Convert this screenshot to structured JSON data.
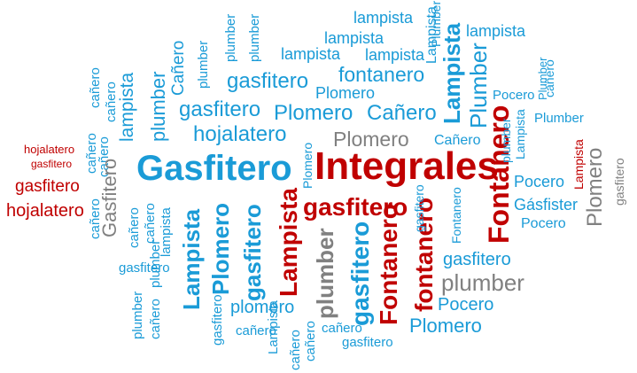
{
  "colors": {
    "blue": "#1a9bd7",
    "red": "#c00000",
    "gray": "#808080"
  },
  "words": [
    "hojalatero",
    "gasfitero",
    "gasfitero",
    "hojalatero",
    "Gasfitero",
    "Integrales",
    "lampista",
    "lampista",
    "lampista",
    "lampista",
    "lampista",
    "plumber",
    "plumber",
    "plumber",
    "plumber",
    "Cañero",
    "Cañero",
    "Cañero",
    "fontanero",
    "Plomero",
    "Plomero",
    "Plomero",
    "Plomero",
    "gasfitero",
    "gasfitero",
    "hojalatero",
    "Lampista",
    "Plumber",
    "Lampista",
    "Lampista",
    "Plumber",
    "Pocero",
    "Pocero",
    "Pocero",
    "Pocero",
    "Gásfister",
    "Plomero",
    "Plumber",
    "Lampista",
    "Plumber",
    "Lampista",
    "Fontanero",
    "Fontanero",
    "fontanero",
    "Fontanero",
    "gasfitero",
    "gasfitero",
    "gasfitero",
    "gasfitero",
    "gasfitero",
    "lampista",
    "Lampista",
    "Plomero",
    "gasfitero",
    "plumber",
    "plumber",
    "plomero",
    "Plomero",
    "cañero",
    "cañero",
    "cañero",
    "cañero",
    "cañero",
    "cañero",
    "cañero",
    "cañero",
    "Gasfitero",
    "lampista",
    "plumber",
    "gasfitero",
    "gasfitero",
    "plumber",
    "cañero",
    "cañero",
    "cañero",
    "cañero",
    "gasfitero",
    "Lampista",
    "cañero",
    "plumber",
    "cañero",
    "cañero",
    "lampista",
    "lampista",
    "Plomero",
    "plumber",
    "Pocero",
    "plumber",
    "Lampista"
  ]
}
